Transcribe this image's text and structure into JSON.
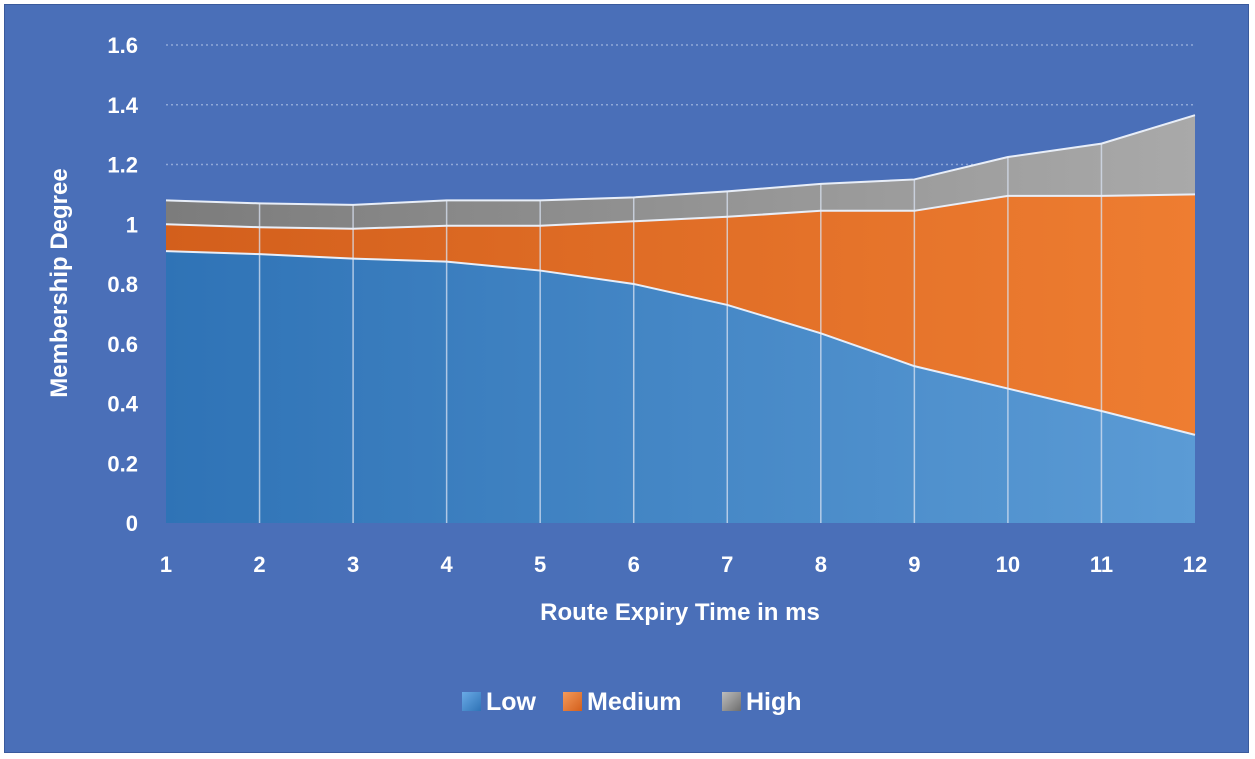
{
  "chart_data": {
    "type": "area",
    "stacked": true,
    "title": "",
    "xlabel": "Route Expiry Time in ms",
    "ylabel": "Membership Degree",
    "x": [
      1,
      2,
      3,
      4,
      5,
      6,
      7,
      8,
      9,
      10,
      11,
      12
    ],
    "x_tick_labels": [
      "1",
      "2",
      "3",
      "4",
      "5",
      "6",
      "7",
      "8",
      "9",
      "10",
      "11",
      "12"
    ],
    "ylim": [
      0,
      1.6
    ],
    "y_ticks": [
      0,
      0.2,
      0.4,
      0.6,
      0.8,
      1,
      1.2,
      1.4,
      1.6
    ],
    "y_tick_labels": [
      "0",
      "0.2",
      "0.4",
      "0.6",
      "0.8",
      "1",
      "1.2",
      "1.4",
      "1.6"
    ],
    "grid": true,
    "legend_position": "bottom",
    "series": [
      {
        "name": "Low",
        "color": "#4a8fd4",
        "values": [
          0.91,
          0.9,
          0.885,
          0.875,
          0.845,
          0.8,
          0.73,
          0.635,
          0.525,
          0.45,
          0.375,
          0.295
        ]
      },
      {
        "name": "Medium",
        "color": "#ee7d31",
        "values": [
          0.09,
          0.09,
          0.1,
          0.12,
          0.15,
          0.21,
          0.295,
          0.41,
          0.52,
          0.645,
          0.72,
          0.805
        ]
      },
      {
        "name": "High",
        "color": "#9a9a9a",
        "values": [
          0.08,
          0.08,
          0.08,
          0.085,
          0.085,
          0.08,
          0.085,
          0.09,
          0.105,
          0.13,
          0.175,
          0.265
        ]
      }
    ]
  }
}
